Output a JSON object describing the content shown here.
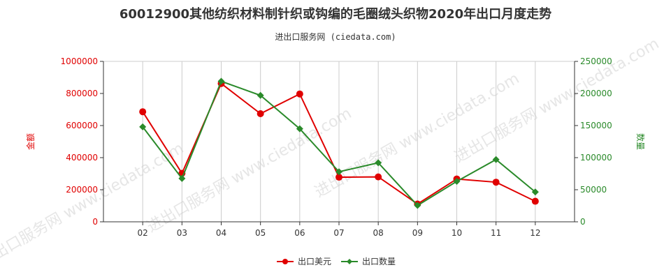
{
  "title": "60012900其他纺织材料制针织或钩编的毛圈绒头织物2020年出口月度走势",
  "subtitle": "进出口服务网 (ciedata.com)",
  "watermark": "进出口服务网 www.ciedata.com",
  "colors": {
    "left": "#e00000",
    "right": "#2a8a2a",
    "grid": "#cccccc",
    "axis": "#333333"
  },
  "chart_data": {
    "type": "line",
    "categories": [
      "02",
      "03",
      "04",
      "05",
      "06",
      "07",
      "08",
      "09",
      "10",
      "11",
      "12"
    ],
    "series": [
      {
        "name": "出口美元",
        "axis": "left",
        "color": "#e00000",
        "values": [
          686000,
          302000,
          862000,
          674000,
          797000,
          278000,
          280000,
          111000,
          267000,
          247000,
          128000
        ]
      },
      {
        "name": "出口数量",
        "axis": "right",
        "color": "#2a8a2a",
        "values": [
          148000,
          67500,
          219000,
          197000,
          145000,
          78000,
          92000,
          25500,
          63000,
          97000,
          46500
        ]
      }
    ],
    "ylabel_left": "金额",
    "ylabel_right": "数量",
    "ylim_left": [
      0,
      1000000
    ],
    "ylim_right": [
      0,
      250000
    ],
    "yticks_left": [
      "0",
      "200000",
      "400000",
      "600000",
      "800000",
      "1000000"
    ],
    "yticks_right": [
      "0",
      "50000",
      "100000",
      "150000",
      "200000",
      "250000"
    ],
    "grid": "vertical",
    "legend": "bottom-center"
  }
}
